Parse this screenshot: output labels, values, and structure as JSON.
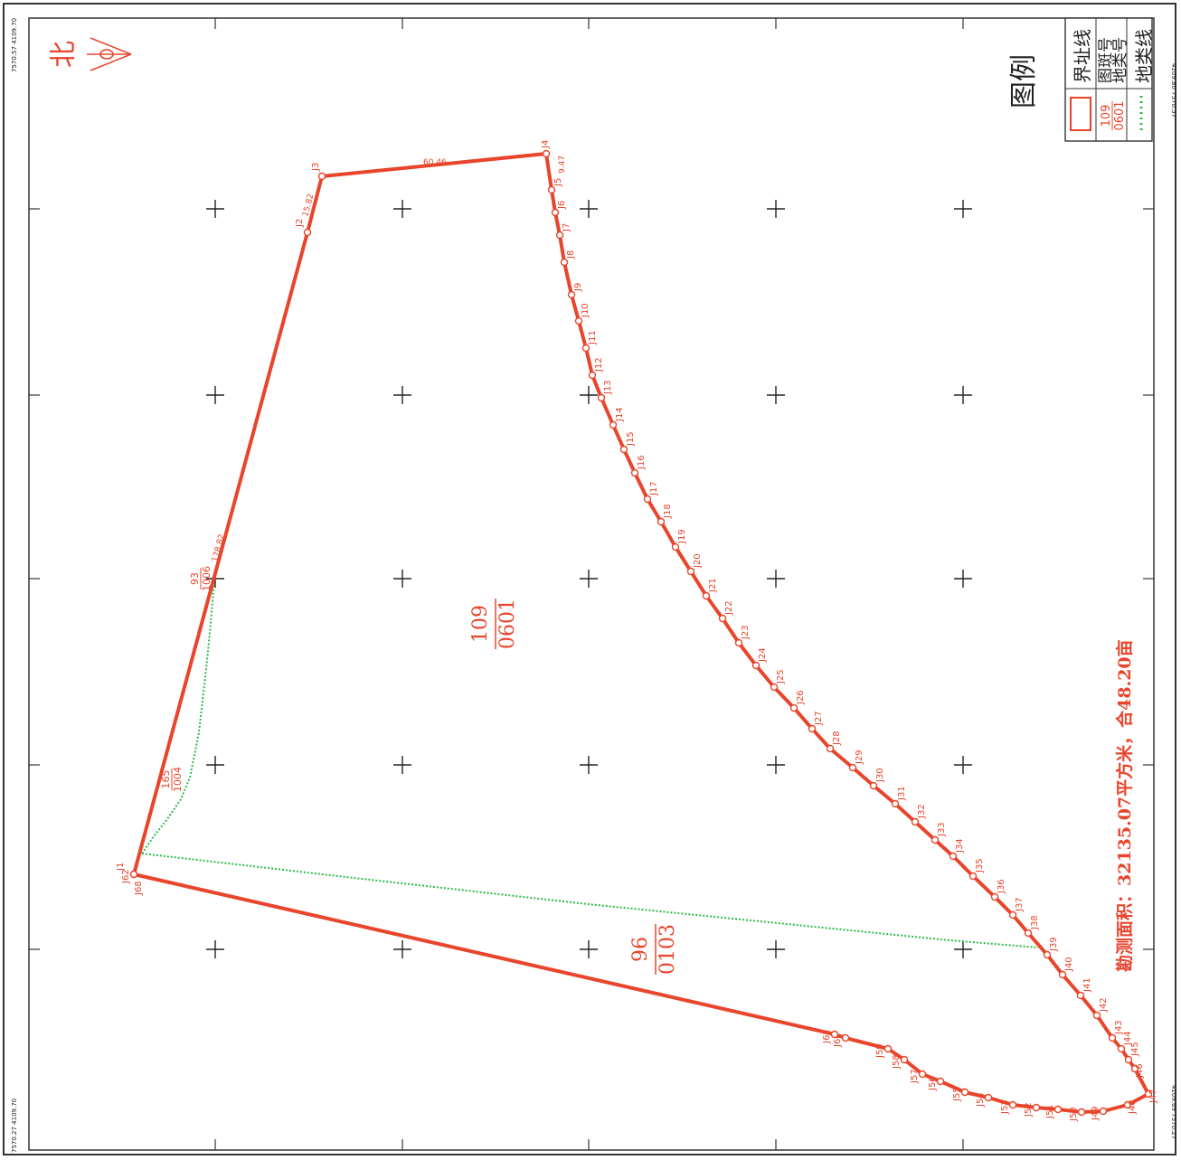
{
  "north_label": "北",
  "legend": {
    "title": "图例",
    "boundary_line": "界址线",
    "parcel_label_line1": "图斑号",
    "parcel_label_line2": "地类号",
    "sample_top": "109",
    "sample_bottom": "0601",
    "landtype_line": "地类线"
  },
  "area_note": "勘测面积：32135.07平方米，合48.20亩",
  "parcels": [
    {
      "top": "109",
      "bottom": "0601"
    },
    {
      "top": "96",
      "bottom": "0103"
    },
    {
      "top": "93",
      "bottom": "1006"
    },
    {
      "top": "165",
      "bottom": "1004"
    }
  ],
  "edge_lengths": [
    "60.46",
    "15.82",
    "178.82",
    "9.47"
  ],
  "points": [
    "J1",
    "J2",
    "J3",
    "J4",
    "J5",
    "J6",
    "J7",
    "J8",
    "J9",
    "J10",
    "J11",
    "J12",
    "J13",
    "J14",
    "J15",
    "J16",
    "J17",
    "J18",
    "J19",
    "J20",
    "J21",
    "J22",
    "J23",
    "J24",
    "J25",
    "J26",
    "J27",
    "J28",
    "J29",
    "J30",
    "J31",
    "J32",
    "J33",
    "J34",
    "J35",
    "J36",
    "J37",
    "J38",
    "J39",
    "J40",
    "J41",
    "J42",
    "J43",
    "J44",
    "J45",
    "J46",
    "J47",
    "J48",
    "J49",
    "J50",
    "J51",
    "J52",
    "J53",
    "J54",
    "J55",
    "J56",
    "J57",
    "J58",
    "J59",
    "J60",
    "J61",
    "J62",
    "J63",
    "J64",
    "J65",
    "J66",
    "J67",
    "J68"
  ],
  "corners": [
    "7570.57 4109.70",
    "4109.80 7570.57",
    "7570.27 4109.70",
    "4109.69 7570.27"
  ],
  "colors": {
    "boundary": "#e8452c",
    "landtype": "#2fb84a",
    "frame": "#333333"
  }
}
